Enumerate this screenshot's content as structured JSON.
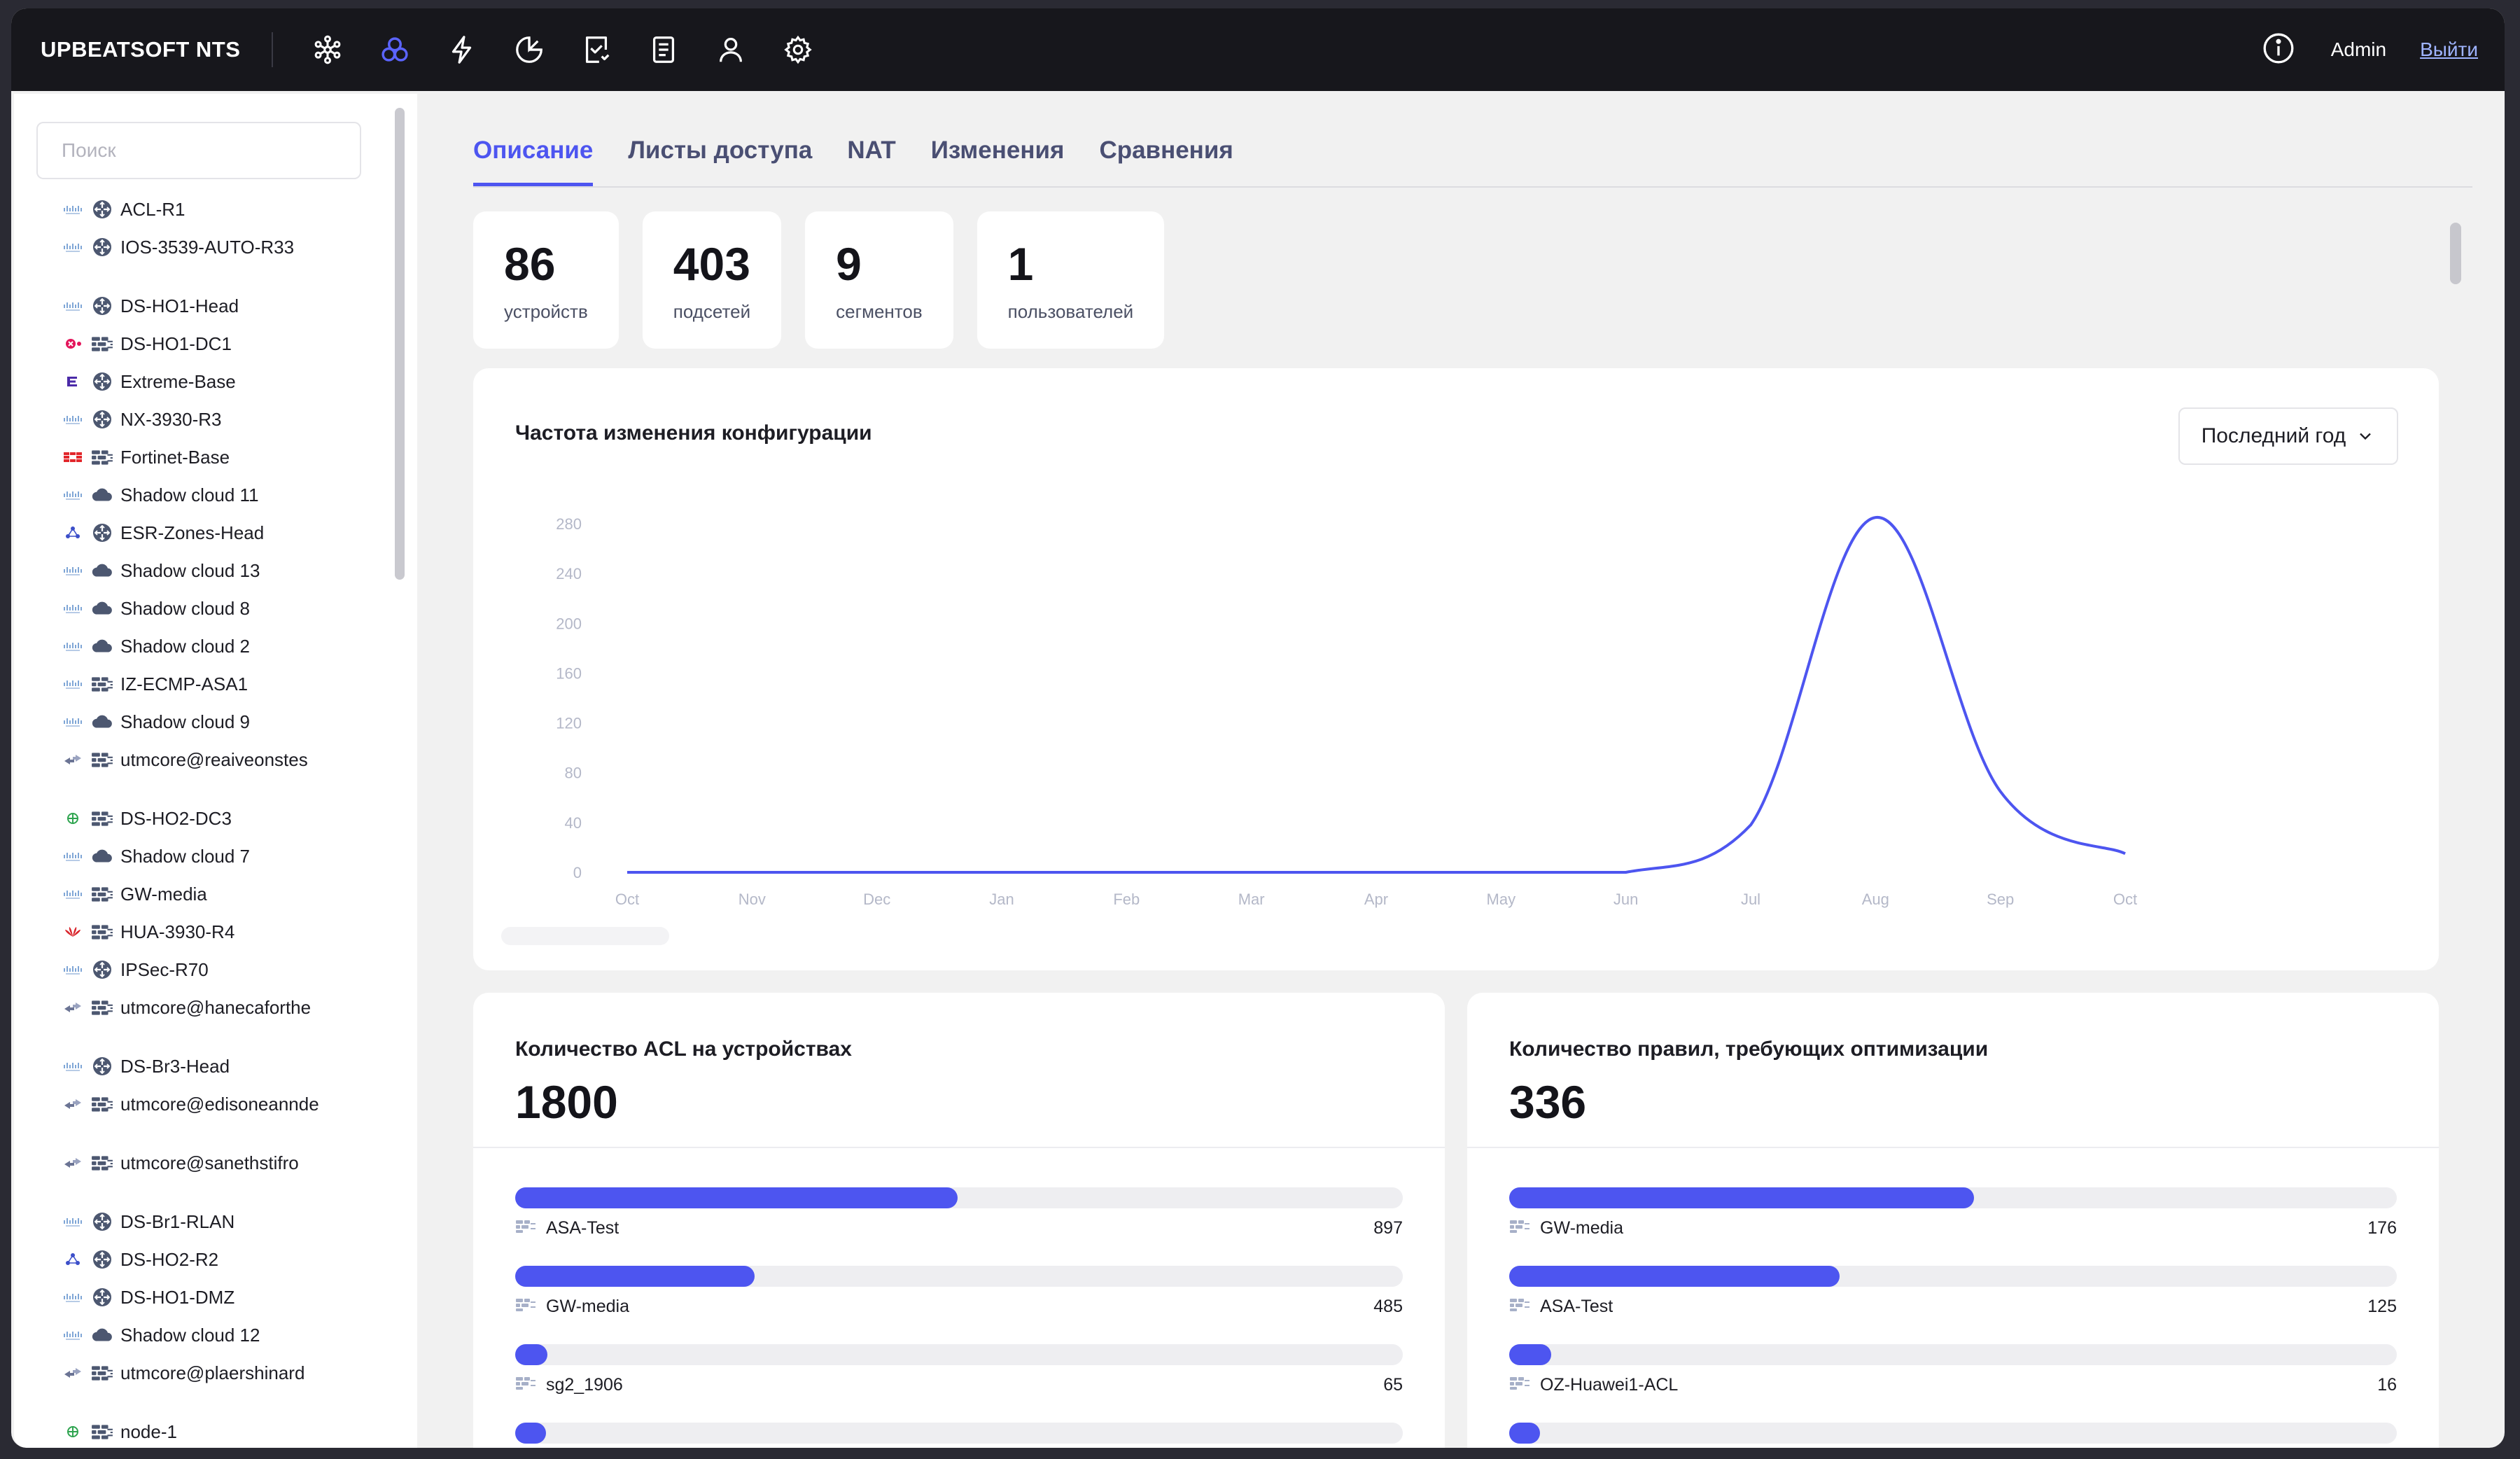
{
  "app": {
    "brand": "UPBEATSOFT NTS",
    "nav_icons": [
      "topology-icon",
      "segments-icon",
      "lightning-icon",
      "pie-chart-icon",
      "task-check-icon",
      "document-icon",
      "user-icon",
      "settings-icon"
    ],
    "active_nav": "segments-icon",
    "user_name": "Admin",
    "logout_label": "Выйти"
  },
  "sidebar": {
    "search_placeholder": "Поиск",
    "items": [
      {
        "label": "ACL-R1",
        "vendor": "cisco",
        "type": "router"
      },
      {
        "label": "IOS-3539-AUTO-R33",
        "vendor": "cisco",
        "type": "router"
      },
      {
        "label": "DS-HO1-Head",
        "vendor": "cisco",
        "type": "router"
      },
      {
        "label": "DS-HO1-DC1",
        "vendor": "checkpoint",
        "type": "firewall"
      },
      {
        "label": "Extreme-Base",
        "vendor": "extreme",
        "type": "router"
      },
      {
        "label": "NX-3930-R3",
        "vendor": "cisco",
        "type": "router"
      },
      {
        "label": "Fortinet-Base",
        "vendor": "fortinet",
        "type": "firewall"
      },
      {
        "label": "Shadow cloud 11",
        "vendor": "cisco",
        "type": "cloud"
      },
      {
        "label": "ESR-Zones-Head",
        "vendor": "eltex",
        "type": "router"
      },
      {
        "label": "Shadow cloud 13",
        "vendor": "cisco",
        "type": "cloud"
      },
      {
        "label": "Shadow cloud 8",
        "vendor": "cisco",
        "type": "cloud"
      },
      {
        "label": "Shadow cloud 2",
        "vendor": "cisco",
        "type": "cloud"
      },
      {
        "label": "IZ-ECMP-ASA1",
        "vendor": "cisco",
        "type": "firewall"
      },
      {
        "label": "Shadow cloud 9",
        "vendor": "cisco",
        "type": "cloud"
      },
      {
        "label": "utmcore@reaiveonstes",
        "vendor": "usergate",
        "type": "firewall"
      },
      {
        "label": "DS-HO2-DC3",
        "vendor": "green",
        "type": "firewall"
      },
      {
        "label": "Shadow cloud 7",
        "vendor": "cisco",
        "type": "cloud"
      },
      {
        "label": "GW-media",
        "vendor": "cisco",
        "type": "firewall"
      },
      {
        "label": "HUA-3930-R4",
        "vendor": "huawei",
        "type": "firewall"
      },
      {
        "label": "IPSec-R70",
        "vendor": "cisco",
        "type": "router"
      },
      {
        "label": "utmcore@hanecaforthe",
        "vendor": "usergate",
        "type": "firewall"
      },
      {
        "label": "DS-Br3-Head",
        "vendor": "cisco",
        "type": "router"
      },
      {
        "label": "utmcore@edisoneannde",
        "vendor": "usergate",
        "type": "firewall"
      },
      {
        "label": "utmcore@sanethstifro",
        "vendor": "usergate",
        "type": "firewall"
      },
      {
        "label": "DS-Br1-RLAN",
        "vendor": "cisco",
        "type": "router"
      },
      {
        "label": "DS-HO2-R2",
        "vendor": "eltex",
        "type": "router"
      },
      {
        "label": "DS-HO1-DMZ",
        "vendor": "cisco",
        "type": "router"
      },
      {
        "label": "Shadow cloud 12",
        "vendor": "cisco",
        "type": "cloud"
      },
      {
        "label": "utmcore@plaershinard",
        "vendor": "usergate",
        "type": "firewall"
      },
      {
        "label": "node-1",
        "vendor": "green",
        "type": "firewall"
      }
    ]
  },
  "tabs": [
    {
      "label": "Описание",
      "active": true
    },
    {
      "label": "Листы доступа",
      "active": false
    },
    {
      "label": "NAT",
      "active": false
    },
    {
      "label": "Изменения",
      "active": false
    },
    {
      "label": "Сравнения",
      "active": false
    }
  ],
  "stats": [
    {
      "value": "86",
      "label": "устройств"
    },
    {
      "value": "403",
      "label": "подсетей"
    },
    {
      "value": "9",
      "label": "сегментов"
    },
    {
      "value": "1",
      "label": "пользователей"
    }
  ],
  "config_chart": {
    "title": "Частота изменения конфигурации",
    "period": "Последний год"
  },
  "chart_data": {
    "type": "line",
    "title": "Частота изменения конфигурации",
    "x": [
      "Oct",
      "Nov",
      "Dec",
      "Jan",
      "Feb",
      "Mar",
      "Apr",
      "May",
      "Jun",
      "Jul",
      "Aug",
      "Sep",
      "Oct"
    ],
    "y_ticks": [
      0,
      40,
      80,
      120,
      160,
      200,
      240,
      280
    ],
    "ylim": [
      0,
      280
    ],
    "series": [
      {
        "values": [
          0,
          0,
          0,
          0,
          0,
          0,
          0,
          0,
          0,
          38,
          285,
          65,
          15
        ],
        "color": "#4d55f0"
      }
    ],
    "grid": false
  },
  "acl_card": {
    "title": "Количество ACL на устройствах",
    "total": "1800",
    "max": 1800,
    "rows": [
      {
        "name": "ASA-Test",
        "value": 897
      },
      {
        "name": "GW-media",
        "value": 485
      },
      {
        "name": "sg2_1906",
        "value": 65
      },
      {
        "name": "",
        "value": 55
      }
    ]
  },
  "rules_card": {
    "title": "Количество правил, требующих оптимизации",
    "total": "336",
    "max": 336,
    "rows": [
      {
        "name": "GW-media",
        "value": 176
      },
      {
        "name": "ASA-Test",
        "value": 125
      },
      {
        "name": "OZ-Huawei1-ACL",
        "value": 16
      },
      {
        "name": "",
        "value": 5
      }
    ]
  }
}
